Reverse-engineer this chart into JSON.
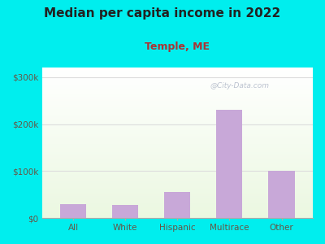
{
  "title": "Median per capita income in 2022",
  "subtitle": "Temple, ME",
  "categories": [
    "All",
    "White",
    "Hispanic",
    "Multirace",
    "Other"
  ],
  "values": [
    30000,
    28000,
    55000,
    230000,
    100000
  ],
  "bar_color": "#c8a8d8",
  "title_fontsize": 11,
  "subtitle_fontsize": 9,
  "subtitle_color": "#aa3333",
  "tick_label_color": "#665544",
  "ylim": [
    0,
    320000
  ],
  "yticks": [
    0,
    100000,
    200000,
    300000
  ],
  "ytick_labels": [
    "$0",
    "$100k",
    "$200k",
    "$300k"
  ],
  "bg_outer": "#00eeee",
  "watermark": "@City-Data.com",
  "grid_color": "#dddddd",
  "bar_width": 0.5
}
